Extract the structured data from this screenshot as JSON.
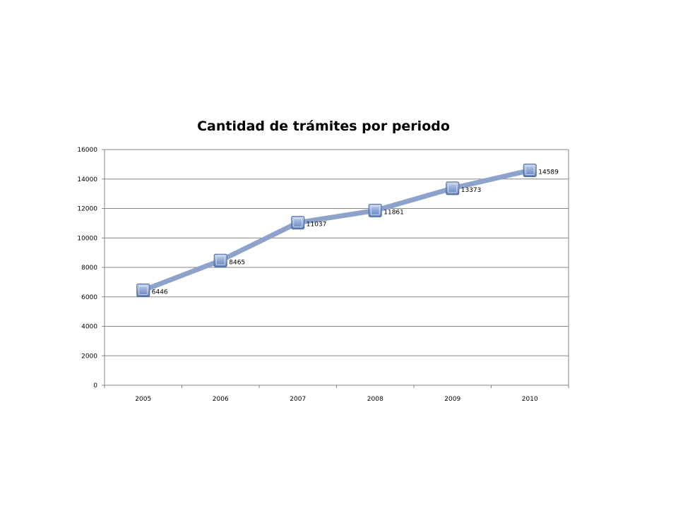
{
  "chart_data": {
    "type": "line",
    "title": "Cantidad de trámites por periodo",
    "xlabel": "",
    "ylabel": "",
    "categories": [
      "2005",
      "2006",
      "2007",
      "2008",
      "2009",
      "2010"
    ],
    "series": [
      {
        "values": [
          6446,
          8465,
          11037,
          11861,
          13373,
          14589
        ]
      }
    ],
    "ylim": [
      0,
      16000
    ],
    "y_ticks": [
      "0",
      "2000",
      "4000",
      "6000",
      "8000",
      "10000",
      "12000",
      "14000",
      "16000"
    ],
    "grid": true,
    "data_labels": true,
    "colors": {
      "line": "#8DA3CB",
      "marker_fill": "#7C98CD",
      "marker_border": "#4A6591",
      "grid": "#868686"
    }
  }
}
